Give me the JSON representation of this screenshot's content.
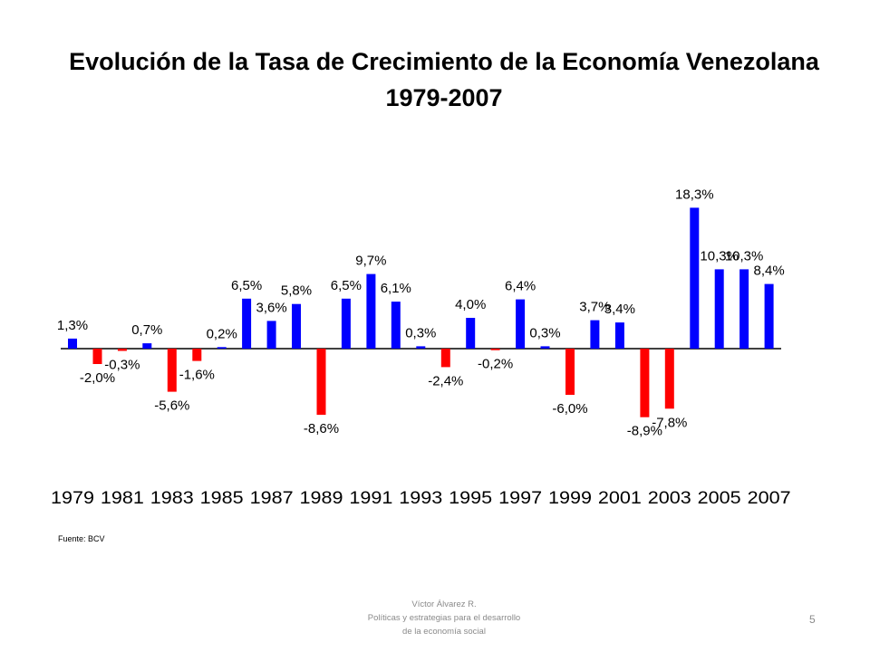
{
  "slide": {
    "title_line1": "Evolución de la Tasa de Crecimiento de la Economía Venezolana",
    "title_line2": "1979-2007",
    "source": "Fuente: BCV",
    "footer_line1": "Víctor Álvarez R.",
    "footer_line2": "Políticas y estrategias para el desarrollo",
    "footer_line3": "de la economía social",
    "page_number": "5"
  },
  "chart_data": {
    "type": "bar",
    "title": "Evolución de la Tasa de Crecimiento de la Economía Venezolana 1979-2007",
    "xlabel": "",
    "ylabel": "",
    "ylim": [
      -10,
      20
    ],
    "grid": false,
    "legend": "none",
    "categories": [
      "1979",
      "1980",
      "1981",
      "1982",
      "1983",
      "1984",
      "1985",
      "1986",
      "1987",
      "1988",
      "1989",
      "1990",
      "1991",
      "1992",
      "1993",
      "1994",
      "1995",
      "1996",
      "1997",
      "1998",
      "1999",
      "2000",
      "2001",
      "2002",
      "2003",
      "2004",
      "2005",
      "2006",
      "2007"
    ],
    "tick_labels": [
      "1979",
      "1981",
      "1983",
      "1985",
      "1987",
      "1989",
      "1991",
      "1993",
      "1995",
      "1997",
      "1999",
      "2001",
      "2003",
      "2005",
      "2007"
    ],
    "values": [
      1.3,
      -2.0,
      -0.3,
      0.7,
      -5.6,
      -1.6,
      0.2,
      6.5,
      3.6,
      5.8,
      -8.6,
      6.5,
      9.7,
      6.1,
      0.3,
      -2.4,
      4.0,
      -0.2,
      6.4,
      0.3,
      -6.0,
      3.7,
      3.4,
      -8.9,
      -7.8,
      18.3,
      10.3,
      10.3,
      8.4
    ],
    "data_labels": [
      "1,3%",
      "-2,0%",
      "-0,3%",
      "0,7%",
      "-5,6%",
      "-1,6%",
      "0,2%",
      "6,5%",
      "3,6%",
      "5,8%",
      "-8,6%",
      "6,5%",
      "9,7%",
      "6,1%",
      "0,3%",
      "-2,4%",
      "4,0%",
      "-0,2%",
      "6,4%",
      "0,3%",
      "-6,0%",
      "3,7%",
      "3,4%",
      "-8,9%",
      "-7,8%",
      "18,3%",
      "10,3%",
      "10,3%",
      "8,4%"
    ],
    "colors": {
      "positive": "#0000ff",
      "negative": "#ff0000",
      "axis": "#000000"
    }
  }
}
